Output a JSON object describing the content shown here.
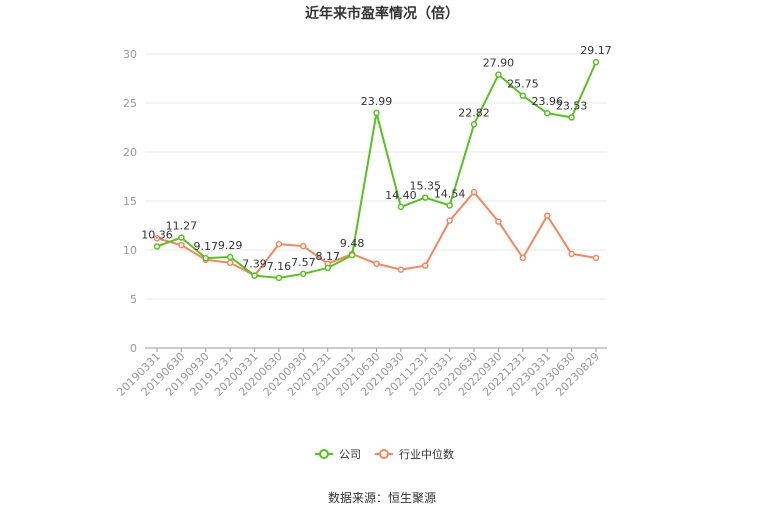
{
  "chart_data": {
    "type": "line",
    "title": "近年来市盈率情况（倍）",
    "source": "数据来源：恒生聚源",
    "categories": [
      "20190331",
      "20190630",
      "20190930",
      "20191231",
      "20200331",
      "20200630",
      "20200930",
      "20201231",
      "20210331",
      "20210630",
      "20210930",
      "20211231",
      "20220331",
      "20220630",
      "20220930",
      "20221231",
      "20230331",
      "20230630",
      "20230829"
    ],
    "ylim": [
      0,
      30
    ],
    "yticks": [
      0,
      5,
      10,
      15,
      20,
      25,
      30
    ],
    "grid": true,
    "legend_position": "bottom",
    "series": [
      {
        "name": "公司",
        "color": "#52c41a",
        "values": [
          10.36,
          11.27,
          9.17,
          9.29,
          7.39,
          7.16,
          7.57,
          8.17,
          9.48,
          23.99,
          14.4,
          15.35,
          14.54,
          22.82,
          27.9,
          25.75,
          23.96,
          23.53,
          29.17
        ],
        "labels": [
          "10.36",
          "11.27",
          "9.17",
          "9.29",
          "7.39",
          "7.16",
          "7.57",
          "8.17",
          "9.48",
          "23.99",
          "14.40",
          "15.35",
          "14.54",
          "22.82",
          "27.90",
          "25.75",
          "23.96",
          "23.53",
          "29.17"
        ]
      },
      {
        "name": "行业中位数",
        "color": "#f5875a",
        "values": [
          11.2,
          10.5,
          9.0,
          8.7,
          7.4,
          10.6,
          10.4,
          8.6,
          9.6,
          8.6,
          8.0,
          8.4,
          13.0,
          15.9,
          12.9,
          9.2,
          13.5,
          9.6,
          9.2
        ]
      }
    ]
  }
}
